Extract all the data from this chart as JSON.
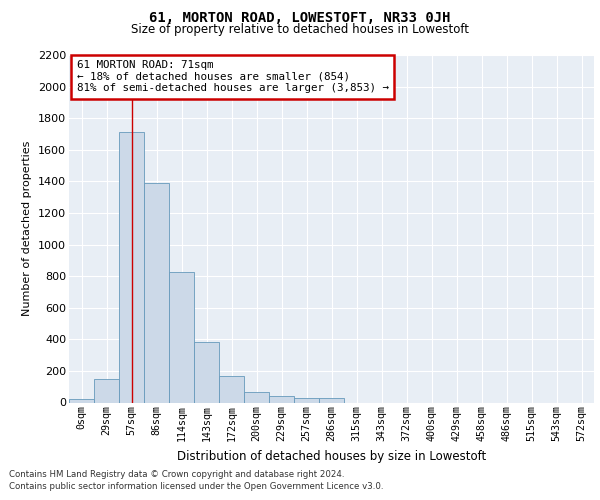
{
  "title": "61, MORTON ROAD, LOWESTOFT, NR33 0JH",
  "subtitle": "Size of property relative to detached houses in Lowestoft",
  "xlabel": "Distribution of detached houses by size in Lowestoft",
  "ylabel": "Number of detached properties",
  "bar_labels": [
    "0sqm",
    "29sqm",
    "57sqm",
    "86sqm",
    "114sqm",
    "143sqm",
    "172sqm",
    "200sqm",
    "229sqm",
    "257sqm",
    "286sqm",
    "315sqm",
    "343sqm",
    "372sqm",
    "400sqm",
    "429sqm",
    "458sqm",
    "486sqm",
    "515sqm",
    "543sqm",
    "572sqm"
  ],
  "bar_values": [
    20,
    150,
    1710,
    1390,
    825,
    385,
    165,
    65,
    38,
    30,
    30,
    0,
    0,
    0,
    0,
    0,
    0,
    0,
    0,
    0,
    0
  ],
  "bar_color": "#ccd9e8",
  "bar_edge_color": "#6699bb",
  "background_color": "#e8eef5",
  "grid_color": "#ffffff",
  "ylim": [
    0,
    2200
  ],
  "yticks": [
    0,
    200,
    400,
    600,
    800,
    1000,
    1200,
    1400,
    1600,
    1800,
    2000,
    2200
  ],
  "property_line_bin": 2,
  "annotation_text": "61 MORTON ROAD: 71sqm\n← 18% of detached houses are smaller (854)\n81% of semi-detached houses are larger (3,853) →",
  "annotation_box_color": "#ffffff",
  "annotation_box_edge": "#cc0000",
  "footer_line1": "Contains HM Land Registry data © Crown copyright and database right 2024.",
  "footer_line2": "Contains public sector information licensed under the Open Government Licence v3.0."
}
